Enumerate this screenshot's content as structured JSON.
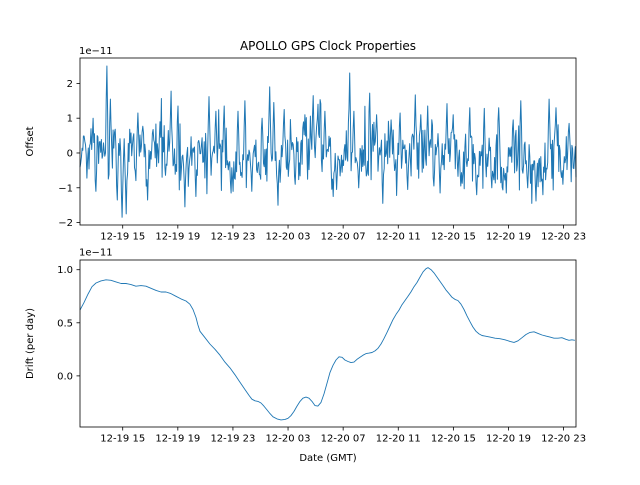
{
  "figure": {
    "title": "APOLLO GPS Clock Properties",
    "xlabel": "Date (GMT)",
    "line_color": "#1f77b4",
    "axis_color": "#000000",
    "background": "#ffffff"
  },
  "chart_data": [
    {
      "type": "line",
      "title": "APOLLO GPS Clock Properties",
      "ylabel": "Offset",
      "offset_label": "1e−11",
      "unit_scale": "1e-11",
      "grid": false,
      "legend": "none",
      "xlim": [
        11.9,
        47.9
      ],
      "ylim": [
        -2.07,
        2.73
      ],
      "y_ticks": [
        {
          "v": -2,
          "label": "−2"
        },
        {
          "v": -1,
          "label": "−1"
        },
        {
          "v": 0,
          "label": "0"
        },
        {
          "v": 1,
          "label": "1"
        },
        {
          "v": 2,
          "label": "2"
        }
      ],
      "x_ticks": [
        {
          "v": 15,
          "label": "12-19 15"
        },
        {
          "v": 19,
          "label": "12-19 19"
        },
        {
          "v": 23,
          "label": "12-19 23"
        },
        {
          "v": 27,
          "label": "12-20 03"
        },
        {
          "v": 31,
          "label": "12-20 07"
        },
        {
          "v": 35,
          "label": "12-20 11"
        },
        {
          "v": 39,
          "label": "12-20 15"
        },
        {
          "v": 43,
          "label": "12-20 19"
        },
        {
          "v": 47,
          "label": "12-20 23"
        }
      ],
      "series": {
        "name": "clock-offset-noise",
        "representation": "procedural-noise",
        "n": 720,
        "seed": 20,
        "noise_std": 0.4,
        "wander_ar": 0.982,
        "wander_step": 0.17,
        "clamp": [
          -1.88,
          2.52
        ],
        "spikes": [
          [
            12.84,
            1.0
          ],
          [
            13.06,
            -1.1
          ],
          [
            13.86,
            2.5
          ],
          [
            14.08,
            1.55
          ],
          [
            14.59,
            -1.35
          ],
          [
            14.95,
            -1.85
          ],
          [
            15.24,
            -1.75
          ],
          [
            16.11,
            1.15
          ],
          [
            16.83,
            -1.35
          ],
          [
            17.71,
            0.9
          ],
          [
            18.5,
            1.78
          ],
          [
            19.01,
            1.35
          ],
          [
            19.52,
            -1.55
          ],
          [
            20.32,
            -1.25
          ],
          [
            21.26,
            1.62
          ],
          [
            21.77,
            1.2
          ],
          [
            22.35,
            1.35
          ],
          [
            22.86,
            -1.15
          ],
          [
            23.37,
            1.2
          ],
          [
            23.88,
            1.5
          ],
          [
            24.38,
            -1.1
          ],
          [
            25.11,
            1.0
          ],
          [
            25.69,
            1.9
          ],
          [
            25.98,
            1.45
          ],
          [
            26.27,
            -1.5
          ],
          [
            26.71,
            1.25
          ],
          [
            27.5,
            -0.9
          ],
          [
            28.23,
            1.1
          ],
          [
            28.81,
            1.65
          ],
          [
            29.17,
            1.4
          ],
          [
            29.68,
            1.2
          ],
          [
            30.26,
            -1.25
          ],
          [
            30.55,
            -1.05
          ],
          [
            31.5,
            2.3
          ],
          [
            31.79,
            1.2
          ],
          [
            32.15,
            -1.0
          ],
          [
            32.95,
            1.72
          ],
          [
            33.45,
            1.1
          ],
          [
            33.89,
            -1.45
          ],
          [
            34.47,
            0.95
          ],
          [
            35.12,
            1.15
          ],
          [
            35.7,
            -1.05
          ],
          [
            36.21,
            1.67
          ],
          [
            36.65,
            1.1
          ],
          [
            37.16,
            1.35
          ],
          [
            37.59,
            -0.95
          ],
          [
            38.03,
            -1.15
          ],
          [
            38.54,
            1.42
          ],
          [
            38.97,
            1.1
          ],
          [
            39.55,
            -0.95
          ],
          [
            40.21,
            1.3
          ],
          [
            40.71,
            -1.2
          ],
          [
            41.22,
            1.28
          ],
          [
            41.8,
            -1.0
          ],
          [
            42.31,
            1.3
          ],
          [
            42.82,
            -1.15
          ],
          [
            43.33,
            0.95
          ],
          [
            43.91,
            1.5
          ],
          [
            44.42,
            -1.0
          ],
          [
            45.0,
            -1.38
          ],
          [
            45.51,
            -1.2
          ],
          [
            45.94,
            1.55
          ],
          [
            46.45,
            1.3
          ],
          [
            46.96,
            -0.9
          ],
          [
            47.39,
            0.85
          ]
        ]
      }
    },
    {
      "type": "line",
      "ylabel": "Drift (per day)",
      "xlabel": "Date (GMT)",
      "offset_label": "1e−11",
      "unit_scale": "1e-11",
      "grid": false,
      "legend": "none",
      "xlim": [
        11.9,
        47.9
      ],
      "ylim": [
        -0.4815,
        1.0915
      ],
      "y_ticks": [
        {
          "v": 0.0,
          "label": "0.0"
        },
        {
          "v": 0.5,
          "label": "0.5"
        },
        {
          "v": 1.0,
          "label": "1.0"
        }
      ],
      "x_ticks": [
        {
          "v": 15,
          "label": "12-19 15"
        },
        {
          "v": 19,
          "label": "12-19 19"
        },
        {
          "v": 23,
          "label": "12-19 23"
        },
        {
          "v": 27,
          "label": "12-20 03"
        },
        {
          "v": 31,
          "label": "12-20 07"
        },
        {
          "v": 35,
          "label": "12-20 11"
        },
        {
          "v": 39,
          "label": "12-20 15"
        },
        {
          "v": 43,
          "label": "12-20 19"
        },
        {
          "v": 47,
          "label": "12-20 23"
        }
      ],
      "series": {
        "name": "clock-drift",
        "representation": "points",
        "x": [
          11.9,
          12.19,
          12.48,
          12.77,
          13.06,
          13.42,
          13.79,
          14.15,
          14.51,
          14.88,
          15.24,
          15.6,
          15.96,
          16.33,
          16.69,
          17.05,
          17.42,
          17.78,
          18.14,
          18.5,
          18.87,
          19.23,
          19.59,
          19.88,
          20.1,
          20.32,
          20.46,
          20.61,
          20.97,
          21.33,
          21.7,
          22.06,
          22.42,
          22.79,
          23.15,
          23.51,
          23.88,
          24.17,
          24.38,
          24.6,
          24.82,
          25.04,
          25.25,
          25.47,
          25.69,
          25.91,
          26.2,
          26.49,
          26.78,
          27.0,
          27.21,
          27.43,
          27.65,
          27.87,
          28.08,
          28.3,
          28.52,
          28.74,
          28.96,
          29.17,
          29.39,
          29.61,
          29.83,
          30.04,
          30.26,
          30.48,
          30.7,
          30.92,
          31.13,
          31.35,
          31.57,
          31.79,
          32.0,
          32.22,
          32.44,
          32.66,
          32.88,
          33.09,
          33.31,
          33.53,
          33.75,
          33.96,
          34.18,
          34.4,
          34.62,
          34.84,
          35.05,
          35.27,
          35.49,
          35.71,
          35.92,
          36.14,
          36.36,
          36.58,
          36.8,
          37.01,
          37.16,
          37.38,
          37.59,
          37.81,
          38.03,
          38.25,
          38.46,
          38.68,
          38.9,
          39.12,
          39.33,
          39.55,
          39.77,
          39.99,
          40.21,
          40.42,
          40.64,
          40.86,
          41.08,
          41.29,
          41.66,
          42.02,
          42.38,
          42.75,
          43.11,
          43.4,
          43.69,
          43.98,
          44.27,
          44.56,
          44.85,
          45.14,
          45.43,
          45.72,
          46.01,
          46.3,
          46.59,
          46.88,
          47.17,
          47.39,
          47.6,
          47.82
        ],
        "y": [
          0.62,
          0.69,
          0.77,
          0.84,
          0.875,
          0.895,
          0.905,
          0.9,
          0.885,
          0.87,
          0.87,
          0.86,
          0.845,
          0.85,
          0.845,
          0.825,
          0.805,
          0.79,
          0.79,
          0.775,
          0.75,
          0.725,
          0.705,
          0.675,
          0.625,
          0.55,
          0.48,
          0.42,
          0.36,
          0.3,
          0.25,
          0.195,
          0.13,
          0.075,
          0.01,
          -0.06,
          -0.13,
          -0.185,
          -0.22,
          -0.235,
          -0.24,
          -0.255,
          -0.285,
          -0.32,
          -0.355,
          -0.385,
          -0.405,
          -0.415,
          -0.41,
          -0.4,
          -0.375,
          -0.335,
          -0.285,
          -0.24,
          -0.21,
          -0.2,
          -0.21,
          -0.24,
          -0.28,
          -0.285,
          -0.25,
          -0.17,
          -0.07,
          0.03,
          0.1,
          0.15,
          0.18,
          0.175,
          0.15,
          0.135,
          0.125,
          0.13,
          0.155,
          0.175,
          0.195,
          0.21,
          0.215,
          0.22,
          0.235,
          0.26,
          0.3,
          0.35,
          0.41,
          0.47,
          0.53,
          0.58,
          0.62,
          0.67,
          0.71,
          0.75,
          0.79,
          0.84,
          0.88,
          0.93,
          0.98,
          1.01,
          1.02,
          1.0,
          0.97,
          0.93,
          0.89,
          0.85,
          0.81,
          0.775,
          0.74,
          0.72,
          0.71,
          0.675,
          0.625,
          0.565,
          0.51,
          0.46,
          0.42,
          0.395,
          0.38,
          0.375,
          0.365,
          0.355,
          0.35,
          0.34,
          0.325,
          0.315,
          0.33,
          0.36,
          0.39,
          0.41,
          0.415,
          0.4,
          0.385,
          0.375,
          0.365,
          0.355,
          0.355,
          0.36,
          0.345,
          0.335,
          0.34,
          0.335
        ]
      }
    }
  ]
}
